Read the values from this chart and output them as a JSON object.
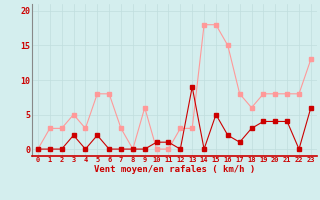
{
  "x": [
    0,
    1,
    2,
    3,
    4,
    5,
    6,
    7,
    8,
    9,
    10,
    11,
    12,
    13,
    14,
    15,
    16,
    17,
    18,
    19,
    20,
    21,
    22,
    23
  ],
  "wind_avg": [
    0,
    0,
    0,
    2,
    0,
    2,
    0,
    0,
    0,
    0,
    1,
    1,
    0,
    9,
    0,
    5,
    2,
    1,
    3,
    4,
    4,
    4,
    0,
    6
  ],
  "wind_gust": [
    0,
    3,
    3,
    5,
    3,
    8,
    8,
    3,
    0,
    6,
    0,
    0,
    3,
    3,
    18,
    18,
    15,
    8,
    6,
    8,
    8,
    8,
    8,
    13
  ],
  "xlabel": "Vent moyen/en rafales ( km/h )",
  "ylim": [
    -1,
    21
  ],
  "xlim": [
    -0.5,
    23.5
  ],
  "yticks": [
    0,
    5,
    10,
    15,
    20
  ],
  "xticks": [
    0,
    1,
    2,
    3,
    4,
    5,
    6,
    7,
    8,
    9,
    10,
    11,
    12,
    13,
    14,
    15,
    16,
    17,
    18,
    19,
    20,
    21,
    22,
    23
  ],
  "bg_color": "#d4eeee",
  "grid_color": "#c0dede",
  "avg_color": "#cc0000",
  "gust_color": "#ff9999",
  "line_width": 0.8,
  "marker_size": 2.5
}
